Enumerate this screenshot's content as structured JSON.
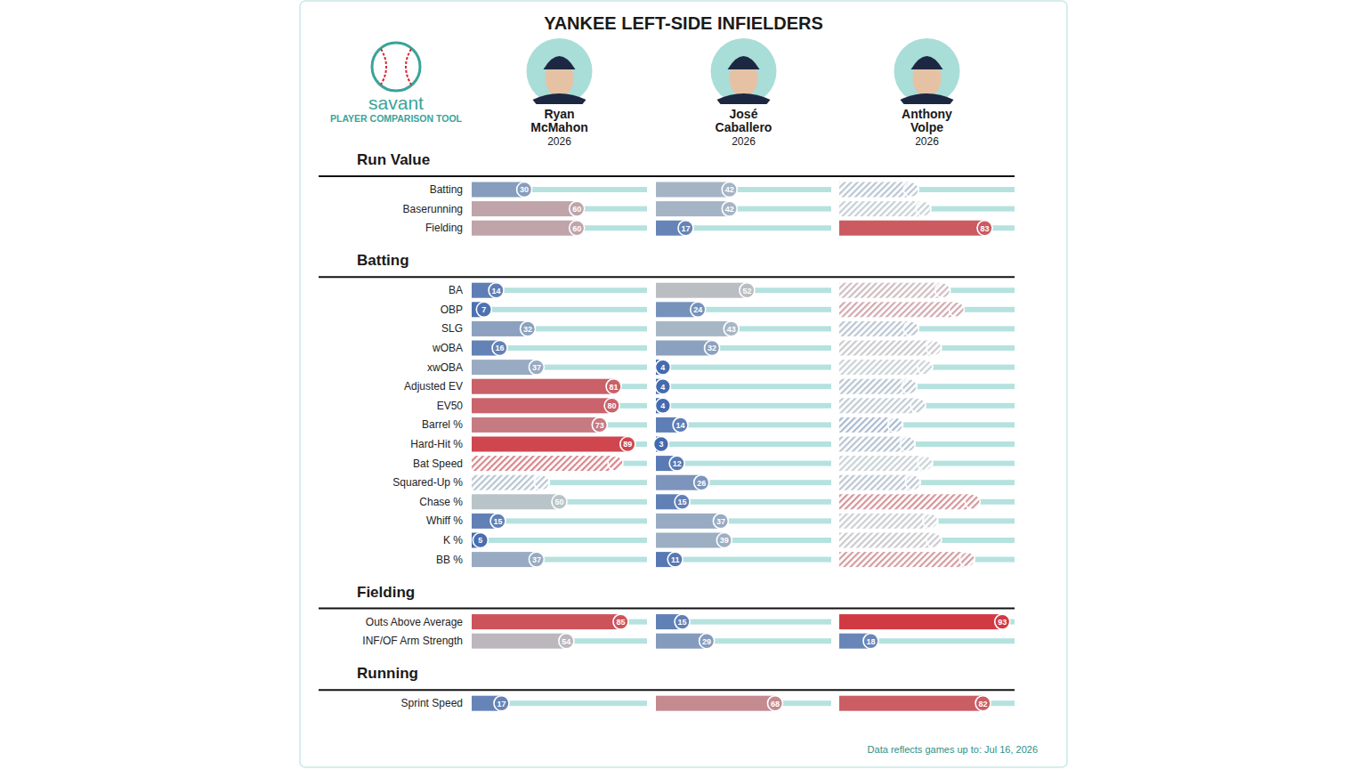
{
  "chart_data": {
    "type": "bar",
    "orientation": "horizontal",
    "title": "YANKEE LEFT-SIDE INFIELDERS",
    "logo_text": "savant",
    "logo_subtitle": "PLAYER COMPARISON TOOL",
    "note": "Data reflects games up to: Jul 16, 2026",
    "xlim": [
      0,
      100
    ],
    "tick_labels": false,
    "data_labels": true,
    "players": [
      {
        "name": "Ryan McMahon",
        "year": "2026"
      },
      {
        "name": "José Caballero",
        "year": "2026"
      },
      {
        "name": "Anthony Volpe",
        "year": "2026"
      }
    ],
    "sections": [
      {
        "title": "Run Value",
        "categories": [
          "Batting",
          "Baserunning",
          "Fielding"
        ],
        "series": [
          {
            "values": [
              30,
              60,
              60
            ],
            "hatched": [
              false,
              false,
              false
            ]
          },
          {
            "values": [
              42,
              42,
              17
            ],
            "hatched": [
              false,
              false,
              false
            ]
          },
          {
            "values": [
              41,
              48,
              83
            ],
            "hatched": [
              true,
              true,
              false
            ]
          }
        ]
      },
      {
        "title": "Batting",
        "categories": [
          "BA",
          "OBP",
          "SLG",
          "wOBA",
          "xwOBA",
          "Adjusted EV",
          "EV50",
          "Barrel %",
          "Hard-Hit %",
          "Bat Speed",
          "Squared-Up %",
          "Chase %",
          "Whiff %",
          "K %",
          "BB %"
        ],
        "series": [
          {
            "values": [
              14,
              7,
              32,
              16,
              37,
              81,
              80,
              73,
              89,
              82,
              40,
              50,
              15,
              5,
              37
            ],
            "hatched": [
              false,
              false,
              false,
              false,
              false,
              false,
              false,
              false,
              false,
              true,
              true,
              false,
              false,
              false,
              false
            ]
          },
          {
            "values": [
              52,
              24,
              43,
              32,
              4,
              4,
              4,
              14,
              3,
              12,
              26,
              15,
              37,
              39,
              11
            ],
            "hatched": [
              false,
              false,
              false,
              false,
              false,
              false,
              false,
              false,
              false,
              false,
              false,
              false,
              false,
              false,
              false
            ]
          },
          {
            "values": [
              59,
              67,
              41,
              54,
              49,
              40,
              45,
              32,
              39,
              49,
              42,
              76,
              52,
              54,
              73
            ],
            "hatched": [
              true,
              true,
              true,
              true,
              true,
              true,
              true,
              true,
              true,
              true,
              true,
              true,
              true,
              true,
              true
            ]
          }
        ]
      },
      {
        "title": "Fielding",
        "categories": [
          "Outs Above Average",
          "INF/OF Arm Strength"
        ],
        "series": [
          {
            "values": [
              85,
              54
            ],
            "hatched": [
              false,
              false
            ]
          },
          {
            "values": [
              15,
              29
            ],
            "hatched": [
              false,
              false
            ]
          },
          {
            "values": [
              93,
              18
            ],
            "hatched": [
              false,
              false
            ]
          }
        ]
      },
      {
        "title": "Running",
        "categories": [
          "Sprint Speed"
        ],
        "series": [
          {
            "values": [
              17
            ],
            "hatched": [
              false
            ]
          },
          {
            "values": [
              68
            ],
            "hatched": [
              false
            ]
          },
          {
            "values": [
              82
            ],
            "hatched": [
              false
            ]
          }
        ]
      }
    ]
  }
}
